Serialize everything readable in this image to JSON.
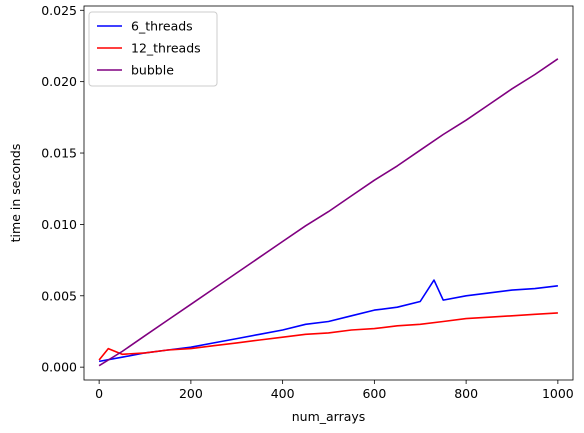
{
  "chart_data": {
    "type": "line",
    "xlabel": "num_arrays",
    "ylabel": "time in seconds",
    "xlim": [
      -33,
      1033
    ],
    "ylim": [
      -0.0009,
      0.0253
    ],
    "xticks": [
      0,
      200,
      400,
      600,
      800,
      1000
    ],
    "xtick_labels": [
      "0",
      "200",
      "400",
      "600",
      "800",
      "1000"
    ],
    "yticks": [
      0.0,
      0.005,
      0.01,
      0.015,
      0.02,
      0.025
    ],
    "ytick_labels": [
      "0.000",
      "0.005",
      "0.010",
      "0.015",
      "0.020",
      "0.025"
    ],
    "grid": false,
    "legend_position": "top-left",
    "series": [
      {
        "name": "6_threads",
        "color": "#0000ff",
        "x": [
          0,
          50,
          100,
          150,
          200,
          250,
          300,
          350,
          400,
          450,
          500,
          550,
          600,
          650,
          700,
          730,
          750,
          800,
          850,
          900,
          950,
          1000
        ],
        "y": [
          0.0004,
          0.0007,
          0.001,
          0.0012,
          0.0014,
          0.0017,
          0.002,
          0.0023,
          0.0026,
          0.003,
          0.0032,
          0.0036,
          0.004,
          0.0042,
          0.0046,
          0.0061,
          0.0047,
          0.005,
          0.0052,
          0.0054,
          0.0055,
          0.0057
        ]
      },
      {
        "name": "12_threads",
        "color": "#ff0000",
        "x": [
          0,
          20,
          50,
          100,
          150,
          200,
          250,
          300,
          350,
          400,
          450,
          500,
          550,
          600,
          650,
          700,
          750,
          800,
          850,
          900,
          950,
          1000
        ],
        "y": [
          0.0005,
          0.0013,
          0.0009,
          0.001,
          0.0012,
          0.0013,
          0.0015,
          0.0017,
          0.0019,
          0.0021,
          0.0023,
          0.0024,
          0.0026,
          0.0027,
          0.0029,
          0.003,
          0.0032,
          0.0034,
          0.0035,
          0.0036,
          0.0037,
          0.0038
        ]
      },
      {
        "name": "bubble",
        "color": "#800080",
        "x": [
          0,
          50,
          100,
          150,
          200,
          250,
          300,
          350,
          400,
          450,
          500,
          550,
          600,
          650,
          700,
          750,
          800,
          850,
          900,
          950,
          1000
        ],
        "y": [
          0.0001,
          0.0011,
          0.0022,
          0.0033,
          0.0044,
          0.0055,
          0.0066,
          0.0077,
          0.0088,
          0.0099,
          0.0109,
          0.012,
          0.0131,
          0.0141,
          0.0152,
          0.0163,
          0.0173,
          0.0184,
          0.0195,
          0.0205,
          0.0216
        ]
      }
    ]
  }
}
